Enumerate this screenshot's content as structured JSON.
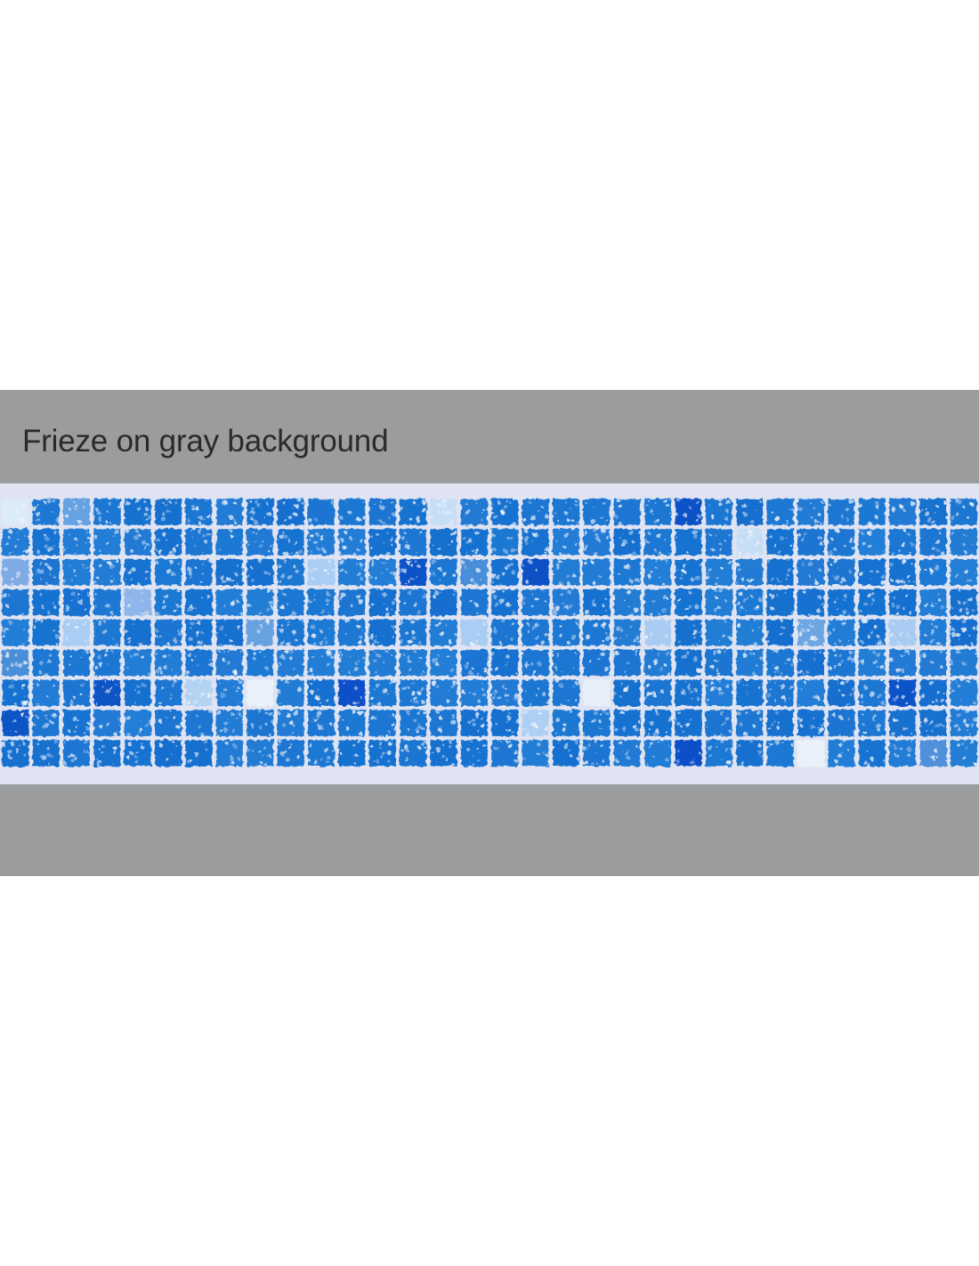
{
  "page": {
    "background": "#ffffff"
  },
  "banner": {
    "title": "Frieze on gray background",
    "background": "#9b9c9e",
    "text_color": "#2a2a2b"
  },
  "frieze": {
    "columns": 32,
    "rows": 9,
    "grout_color": "#e0e4f2",
    "tile_color_default": "#1c76d2",
    "speckle_color": "#eef2fb",
    "special_tiles": [
      {
        "col": 1,
        "row": 1,
        "color": "#dcebf8"
      },
      {
        "col": 3,
        "row": 1,
        "color": "#66a2e2"
      },
      {
        "col": 15,
        "row": 1,
        "color": "#c6def6"
      },
      {
        "col": 23,
        "row": 1,
        "color": "#0b51c6"
      },
      {
        "col": 25,
        "row": 2,
        "color": "#c6def6"
      },
      {
        "col": 1,
        "row": 3,
        "color": "#7fabe5"
      },
      {
        "col": 11,
        "row": 3,
        "color": "#aacdf4"
      },
      {
        "col": 14,
        "row": 3,
        "color": "#0d52c8"
      },
      {
        "col": 16,
        "row": 3,
        "color": "#4a8ed8"
      },
      {
        "col": 18,
        "row": 3,
        "color": "#0b51c6"
      },
      {
        "col": 5,
        "row": 4,
        "color": "#8fb6ea"
      },
      {
        "col": 3,
        "row": 5,
        "color": "#aacdf4"
      },
      {
        "col": 9,
        "row": 5,
        "color": "#68a1df"
      },
      {
        "col": 16,
        "row": 5,
        "color": "#aacdf4"
      },
      {
        "col": 22,
        "row": 5,
        "color": "#a9cbf2"
      },
      {
        "col": 27,
        "row": 5,
        "color": "#6ca6e2"
      },
      {
        "col": 30,
        "row": 5,
        "color": "#a9cbf2"
      },
      {
        "col": 1,
        "row": 6,
        "color": "#4a8ed8"
      },
      {
        "col": 4,
        "row": 7,
        "color": "#0c55c5"
      },
      {
        "col": 7,
        "row": 7,
        "color": "#b3d3f3"
      },
      {
        "col": 9,
        "row": 7,
        "color": "#e9f1fa"
      },
      {
        "col": 12,
        "row": 7,
        "color": "#0c50c8"
      },
      {
        "col": 20,
        "row": 7,
        "color": "#e6effa"
      },
      {
        "col": 30,
        "row": 7,
        "color": "#0d52c8"
      },
      {
        "col": 1,
        "row": 8,
        "color": "#0d55c5"
      },
      {
        "col": 18,
        "row": 8,
        "color": "#aecff5"
      },
      {
        "col": 23,
        "row": 9,
        "color": "#0c50c8"
      },
      {
        "col": 27,
        "row": 9,
        "color": "#e9f1fa"
      },
      {
        "col": 31,
        "row": 9,
        "color": "#4f90da"
      }
    ]
  }
}
